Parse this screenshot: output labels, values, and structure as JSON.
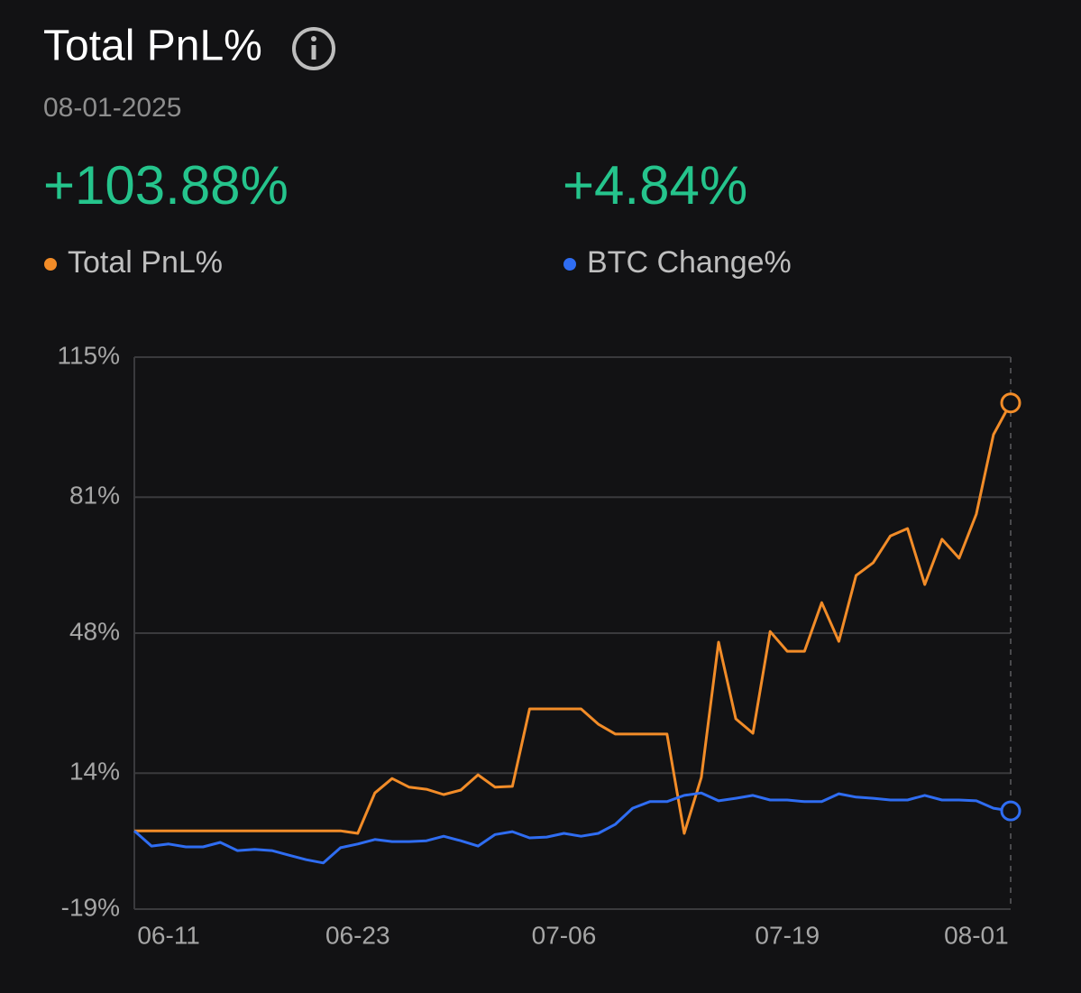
{
  "chart_data": {
    "type": "line",
    "title": "Total PnL%",
    "date": "08-01-2025",
    "stats": [
      "+103.88%",
      "+4.84%"
    ],
    "categories": [
      null,
      null,
      "06-11",
      null,
      null,
      null,
      null,
      null,
      null,
      null,
      null,
      null,
      null,
      "06-23",
      null,
      null,
      null,
      null,
      null,
      null,
      null,
      null,
      null,
      null,
      null,
      "07-06",
      null,
      null,
      null,
      null,
      null,
      null,
      null,
      null,
      null,
      null,
      null,
      null,
      "07-19",
      null,
      null,
      null,
      null,
      null,
      null,
      null,
      null,
      null,
      null,
      "08-01",
      null,
      null
    ],
    "series": [
      {
        "name": "Total PnL%",
        "color": "#f28c28",
        "values": [
          0,
          0,
          0,
          0,
          0,
          0,
          0,
          0,
          0,
          0,
          0,
          0,
          0,
          -0.6,
          9.2,
          12.7,
          10.6,
          10.1,
          8.8,
          9.9,
          13.6,
          10.6,
          10.8,
          29.6,
          29.6,
          29.6,
          29.6,
          25.9,
          23.5,
          23.5,
          23.5,
          23.5,
          -0.6,
          13.0,
          45.8,
          27.2,
          23.7,
          48.4,
          43.6,
          43.6,
          55.4,
          46.0,
          62.0,
          65.1,
          71.6,
          73.4,
          59.8,
          70.8,
          66.2,
          76.9,
          96.2,
          103.88
        ]
      },
      {
        "name": "BTC Change%",
        "color": "#2f6df2",
        "values": [
          0,
          -3.7,
          -3.2,
          -3.9,
          -3.9,
          -2.8,
          -4.8,
          -4.5,
          -4.8,
          -5.9,
          -7.0,
          -7.8,
          -4.1,
          -3.2,
          -2.1,
          -2.6,
          -2.6,
          -2.4,
          -1.3,
          -2.4,
          -3.7,
          -0.9,
          -0.2,
          -1.7,
          -1.5,
          -0.6,
          -1.3,
          -0.6,
          1.6,
          5.5,
          7.1,
          7.1,
          8.6,
          9.2,
          7.3,
          7.9,
          8.6,
          7.5,
          7.5,
          7.1,
          7.1,
          9.0,
          8.2,
          7.9,
          7.5,
          7.5,
          8.6,
          7.5,
          7.5,
          7.3,
          5.5,
          4.84
        ]
      }
    ],
    "ylim": [
      -19,
      115
    ],
    "yticks": [
      {
        "value": -19,
        "label": "-19%"
      },
      {
        "value": 14,
        "label": "14%"
      },
      {
        "value": 48,
        "label": "48%"
      },
      {
        "value": 81,
        "label": "81%"
      },
      {
        "value": 115,
        "label": "115%"
      }
    ],
    "grid": true,
    "stat_color": "#25c48c"
  }
}
